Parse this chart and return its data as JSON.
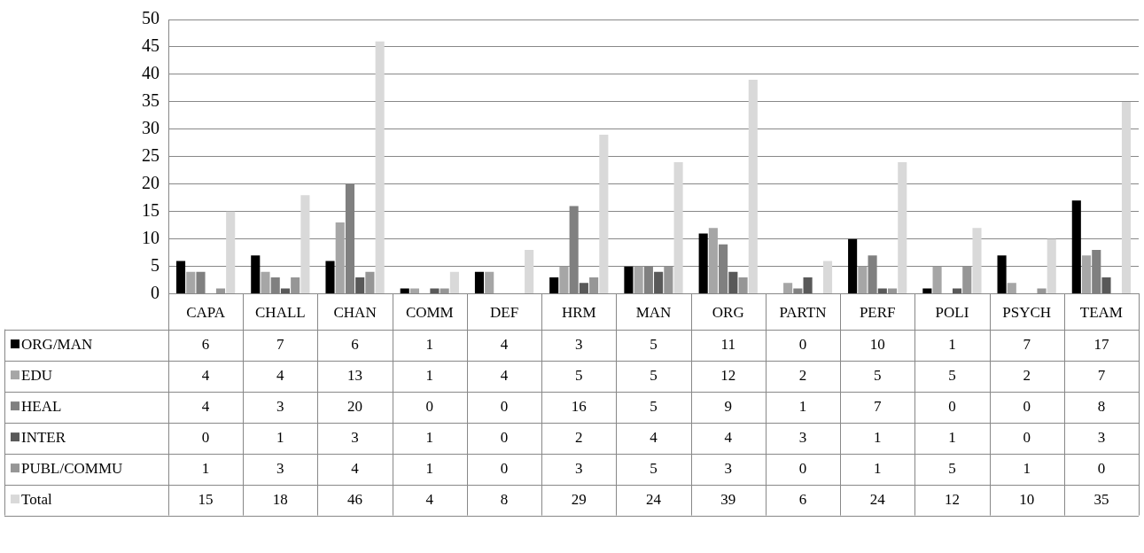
{
  "chart_data": {
    "type": "bar",
    "categories": [
      "CAPA",
      "CHALL",
      "CHAN",
      "COMM",
      "DEF",
      "HRM",
      "MAN",
      "ORG",
      "PARTN",
      "PERF",
      "POLI",
      "PSYCH",
      "TEAM"
    ],
    "series": [
      {
        "name": "ORG/MAN",
        "color": "#000000",
        "values": [
          6,
          7,
          6,
          1,
          4,
          3,
          5,
          11,
          0,
          10,
          1,
          7,
          17
        ]
      },
      {
        "name": "EDU",
        "color": "#a6a6a6",
        "values": [
          4,
          4,
          13,
          1,
          4,
          5,
          5,
          12,
          2,
          5,
          5,
          2,
          7
        ]
      },
      {
        "name": "HEAL",
        "color": "#808080",
        "values": [
          4,
          3,
          20,
          0,
          0,
          16,
          5,
          9,
          1,
          7,
          0,
          0,
          8
        ]
      },
      {
        "name": "INTER",
        "color": "#595959",
        "values": [
          0,
          1,
          3,
          1,
          0,
          2,
          4,
          4,
          3,
          1,
          1,
          0,
          3
        ]
      },
      {
        "name": "PUBL/COMMU",
        "color": "#969696",
        "values": [
          1,
          3,
          4,
          1,
          0,
          3,
          5,
          3,
          0,
          1,
          5,
          1,
          0
        ]
      },
      {
        "name": "Total",
        "color": "#d9d9d9",
        "values": [
          15,
          18,
          46,
          4,
          8,
          29,
          24,
          39,
          6,
          24,
          12,
          10,
          35
        ]
      }
    ],
    "ylim": [
      0,
      50
    ],
    "yticks": [
      0,
      5,
      10,
      15,
      20,
      25,
      30,
      35,
      40,
      45,
      50
    ],
    "grid": "y",
    "legend": "bottom",
    "data_labels": true
  }
}
